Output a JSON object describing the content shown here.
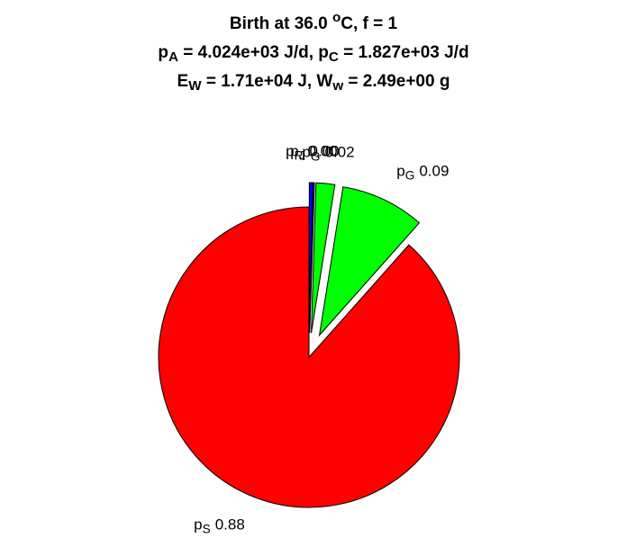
{
  "chart_data": {
    "type": "pie",
    "title": [
      [
        {
          "text": "Birth at 36.0 "
        },
        {
          "text": "o",
          "script": "sup"
        },
        {
          "text": "C, f = 1"
        }
      ],
      [
        {
          "text": "p"
        },
        {
          "text": "A",
          "script": "sub"
        },
        {
          "text": " = 4.024e+03 J/d, p"
        },
        {
          "text": "C",
          "script": "sub"
        },
        {
          "text": " = 1.827e+03 J/d"
        }
      ],
      [
        {
          "text": "E"
        },
        {
          "text": "W",
          "script": "sub"
        },
        {
          "text": " = 1.71e+04 J, W"
        },
        {
          "text": "w",
          "script": "sub"
        },
        {
          "text": " = 2.49e+00 g"
        }
      ]
    ],
    "categories": [
      [
        {
          "text": "p"
        },
        {
          "text": "R",
          "script": "sub"
        }
      ],
      [
        {
          "text": "p"
        },
        {
          "text": "J",
          "script": "sub"
        }
      ],
      [
        {
          "text": "p"
        },
        {
          "text": "G",
          "script": "sub"
        }
      ],
      [
        {
          "text": "p"
        },
        {
          "text": "G",
          "script": "sub"
        }
      ],
      [
        {
          "text": "p"
        },
        {
          "text": "S",
          "script": "sub"
        }
      ]
    ],
    "values": [
      0.004,
      0.001,
      0.02,
      0.09,
      0.88
    ],
    "value_labels": [
      "0.00",
      "0.00",
      "0.02",
      "0.09",
      "0.88"
    ],
    "colors": [
      "#0000ff",
      "#00ffff",
      "#00ff00",
      "#00ff00",
      "#ff0000"
    ],
    "explode": [
      true,
      true,
      true,
      true,
      false
    ]
  }
}
